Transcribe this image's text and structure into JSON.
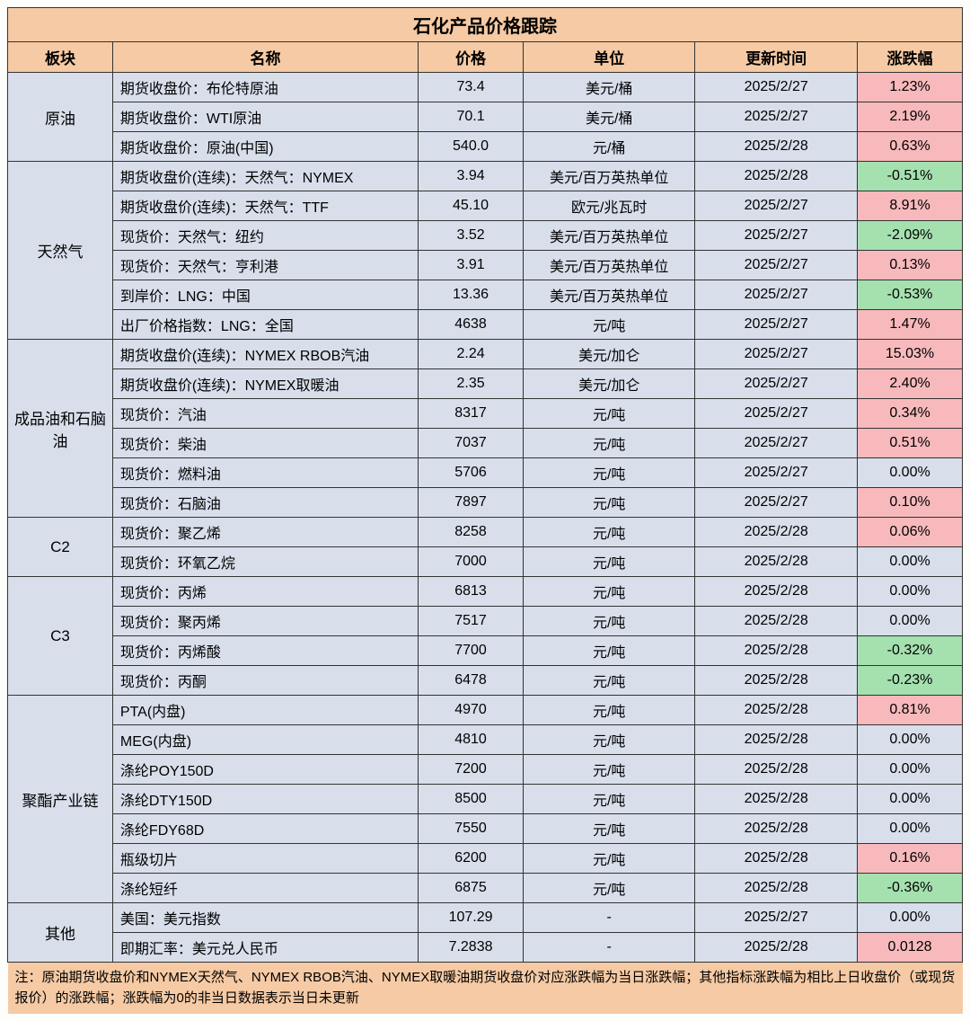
{
  "title": "石化产品价格跟踪",
  "columns": [
    "板块",
    "名称",
    "价格",
    "单位",
    "更新时间",
    "涨跌幅"
  ],
  "note": "注：原油期货收盘价和NYMEX天然气、NYMEX RBOB汽油、NYMEX取暖油期货收盘价对应涨跌幅为当日涨跌幅；其他指标涨跌幅为相比上日收盘价（或现货报价）的涨跌幅；涨跌幅为0的非当日数据表示当日未更新",
  "colors": {
    "header_bg": "#f6caa4",
    "body_bg": "#d8dfeb",
    "up_bg": "#f7b9bc",
    "down_bg": "#a5e0af",
    "border": "#333333",
    "text": "#000000"
  },
  "sections": [
    {
      "name": "原油",
      "rows": [
        {
          "name": "期货收盘价：布伦特原油",
          "price": "73.4",
          "unit": "美元/桶",
          "date": "2025/2/27",
          "chg": "1.23%",
          "dir": "up"
        },
        {
          "name": "期货收盘价：WTI原油",
          "price": "70.1",
          "unit": "美元/桶",
          "date": "2025/2/27",
          "chg": "2.19%",
          "dir": "up"
        },
        {
          "name": "期货收盘价：原油(中国)",
          "price": "540.0",
          "unit": "元/桶",
          "date": "2025/2/28",
          "chg": "0.63%",
          "dir": "up"
        }
      ]
    },
    {
      "name": "天然气",
      "rows": [
        {
          "name": "期货收盘价(连续)：天然气：NYMEX",
          "price": "3.94",
          "unit": "美元/百万英热单位",
          "date": "2025/2/28",
          "chg": "-0.51%",
          "dir": "down"
        },
        {
          "name": "期货收盘价(连续)：天然气：TTF",
          "price": "45.10",
          "unit": "欧元/兆瓦时",
          "date": "2025/2/27",
          "chg": "8.91%",
          "dir": "up"
        },
        {
          "name": "现货价：天然气：纽约",
          "price": "3.52",
          "unit": "美元/百万英热单位",
          "date": "2025/2/27",
          "chg": "-2.09%",
          "dir": "down"
        },
        {
          "name": "现货价：天然气：亨利港",
          "price": "3.91",
          "unit": "美元/百万英热单位",
          "date": "2025/2/27",
          "chg": "0.13%",
          "dir": "up"
        },
        {
          "name": "到岸价：LNG：中国",
          "price": "13.36",
          "unit": "美元/百万英热单位",
          "date": "2025/2/27",
          "chg": "-0.53%",
          "dir": "down"
        },
        {
          "name": "出厂价格指数：LNG：全国",
          "price": "4638",
          "unit": "元/吨",
          "date": "2025/2/27",
          "chg": "1.47%",
          "dir": "up"
        }
      ]
    },
    {
      "name": "成品油和石脑油",
      "rows": [
        {
          "name": "期货收盘价(连续)：NYMEX RBOB汽油",
          "price": "2.24",
          "unit": "美元/加仑",
          "date": "2025/2/27",
          "chg": "15.03%",
          "dir": "up"
        },
        {
          "name": "期货收盘价(连续)：NYMEX取暖油",
          "price": "2.35",
          "unit": "美元/加仑",
          "date": "2025/2/27",
          "chg": "2.40%",
          "dir": "up"
        },
        {
          "name": "现货价：汽油",
          "price": "8317",
          "unit": "元/吨",
          "date": "2025/2/27",
          "chg": "0.34%",
          "dir": "up"
        },
        {
          "name": "现货价：柴油",
          "price": "7037",
          "unit": "元/吨",
          "date": "2025/2/27",
          "chg": "0.51%",
          "dir": "up"
        },
        {
          "name": "现货价：燃料油",
          "price": "5706",
          "unit": "元/吨",
          "date": "2025/2/27",
          "chg": "0.00%",
          "dir": "none"
        },
        {
          "name": "现货价：石脑油",
          "price": "7897",
          "unit": "元/吨",
          "date": "2025/2/27",
          "chg": "0.10%",
          "dir": "up"
        }
      ]
    },
    {
      "name": "C2",
      "rows": [
        {
          "name": "现货价：聚乙烯",
          "price": "8258",
          "unit": "元/吨",
          "date": "2025/2/28",
          "chg": "0.06%",
          "dir": "up"
        },
        {
          "name": "现货价：环氧乙烷",
          "price": "7000",
          "unit": "元/吨",
          "date": "2025/2/28",
          "chg": "0.00%",
          "dir": "none"
        }
      ]
    },
    {
      "name": "C3",
      "rows": [
        {
          "name": "现货价：丙烯",
          "price": "6813",
          "unit": "元/吨",
          "date": "2025/2/28",
          "chg": "0.00%",
          "dir": "none"
        },
        {
          "name": "现货价：聚丙烯",
          "price": "7517",
          "unit": "元/吨",
          "date": "2025/2/28",
          "chg": "0.00%",
          "dir": "none"
        },
        {
          "name": "现货价：丙烯酸",
          "price": "7700",
          "unit": "元/吨",
          "date": "2025/2/28",
          "chg": "-0.32%",
          "dir": "down"
        },
        {
          "name": "现货价：丙酮",
          "price": "6478",
          "unit": "元/吨",
          "date": "2025/2/28",
          "chg": "-0.23%",
          "dir": "down"
        }
      ]
    },
    {
      "name": "聚酯产业链",
      "rows": [
        {
          "name": "PTA(内盘)",
          "price": "4970",
          "unit": "元/吨",
          "date": "2025/2/28",
          "chg": "0.81%",
          "dir": "up"
        },
        {
          "name": "MEG(内盘)",
          "price": "4810",
          "unit": "元/吨",
          "date": "2025/2/28",
          "chg": "0.00%",
          "dir": "none"
        },
        {
          "name": "涤纶POY150D",
          "price": "7200",
          "unit": "元/吨",
          "date": "2025/2/28",
          "chg": "0.00%",
          "dir": "none"
        },
        {
          "name": "涤纶DTY150D",
          "price": "8500",
          "unit": "元/吨",
          "date": "2025/2/28",
          "chg": "0.00%",
          "dir": "none"
        },
        {
          "name": "涤纶FDY68D",
          "price": "7550",
          "unit": "元/吨",
          "date": "2025/2/28",
          "chg": "0.00%",
          "dir": "none"
        },
        {
          "name": "瓶级切片",
          "price": "6200",
          "unit": "元/吨",
          "date": "2025/2/28",
          "chg": "0.16%",
          "dir": "up"
        },
        {
          "name": "涤纶短纤",
          "price": "6875",
          "unit": "元/吨",
          "date": "2025/2/28",
          "chg": "-0.36%",
          "dir": "down"
        }
      ]
    },
    {
      "name": "其他",
      "rows": [
        {
          "name": "美国：美元指数",
          "price": "107.29",
          "unit": "-",
          "date": "2025/2/27",
          "chg": "0.00%",
          "dir": "none"
        },
        {
          "name": "即期汇率：美元兑人民币",
          "price": "7.2838",
          "unit": "-",
          "date": "2025/2/28",
          "chg": "0.0128",
          "dir": "up"
        }
      ]
    }
  ]
}
